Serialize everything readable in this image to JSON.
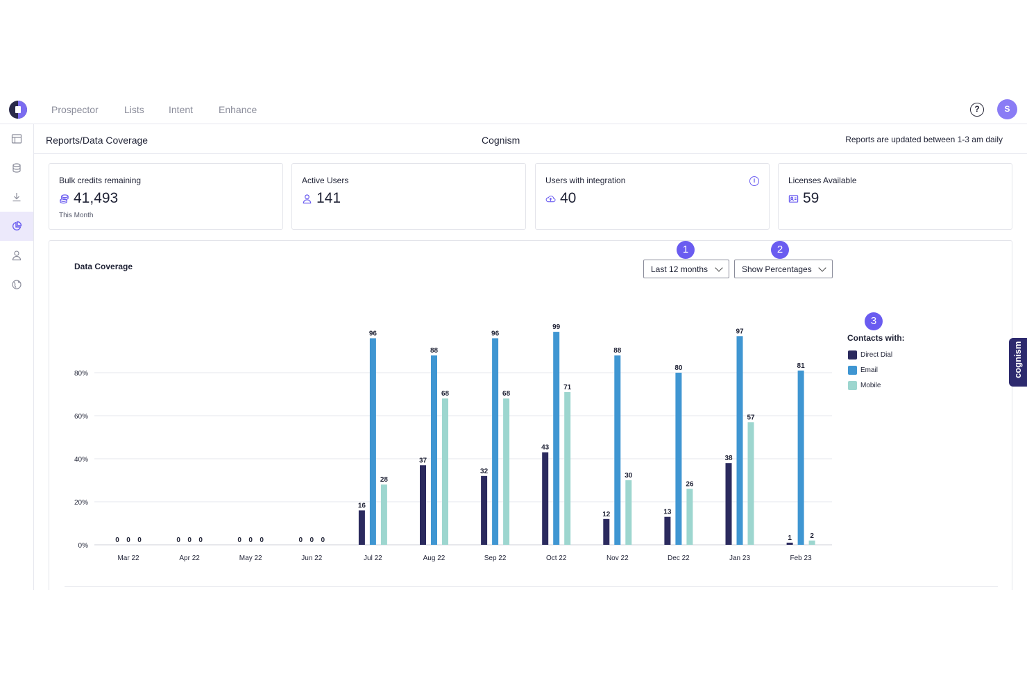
{
  "nav": {
    "items": [
      "Prospector",
      "Lists",
      "Intent",
      "Enhance"
    ],
    "avatar_initial": "S",
    "help_glyph": "?"
  },
  "sidebar": {
    "icons": [
      "layout-icon",
      "database-icon",
      "download-icon",
      "pie-chart-icon",
      "user-icon",
      "globe-icon"
    ],
    "active_index": 3
  },
  "header": {
    "breadcrumb": "Reports/Data Coverage",
    "company": "Cognism",
    "update_note": "Reports are updated between 1-3 am daily"
  },
  "cards": [
    {
      "label": "Bulk credits remaining",
      "value": "41,493",
      "sub": "This Month",
      "icon": "coins-icon"
    },
    {
      "label": "Active Users",
      "value": "141",
      "icon": "user-icon"
    },
    {
      "label": "Users with integration",
      "value": "40",
      "icon": "cloud-upload-icon",
      "info": "i"
    },
    {
      "label": "Licenses Available",
      "value": "59",
      "icon": "id-card-icon"
    }
  ],
  "panel": {
    "title": "Data Coverage",
    "period_select": "Last 12 months",
    "display_select": "Show Percentages",
    "badges": [
      "1",
      "2",
      "3"
    ]
  },
  "side_tab": {
    "label": "cognism"
  },
  "chart_data": {
    "type": "bar",
    "categories": [
      "Mar 22",
      "Apr 22",
      "May 22",
      "Jun 22",
      "Jul 22",
      "Aug 22",
      "Sep 22",
      "Oct 22",
      "Nov 22",
      "Dec 22",
      "Jan 23",
      "Feb 23"
    ],
    "series": [
      {
        "name": "Direct Dial",
        "color": "#2b2a5e",
        "values": [
          0,
          0,
          0,
          0,
          16,
          37,
          32,
          43,
          12,
          13,
          38,
          1
        ]
      },
      {
        "name": "Email",
        "color": "#3f96d2",
        "values": [
          0,
          0,
          0,
          0,
          96,
          88,
          96,
          99,
          88,
          80,
          97,
          81
        ]
      },
      {
        "name": "Mobile",
        "color": "#9dd6cf",
        "values": [
          0,
          0,
          0,
          0,
          28,
          68,
          68,
          71,
          30,
          26,
          57,
          2
        ]
      }
    ],
    "yticks": [
      "0%",
      "20%",
      "40%",
      "60%",
      "80%"
    ],
    "ylim": [
      0,
      100
    ],
    "legend_title": "Contacts with:",
    "legend_position": "right",
    "grid": true
  }
}
